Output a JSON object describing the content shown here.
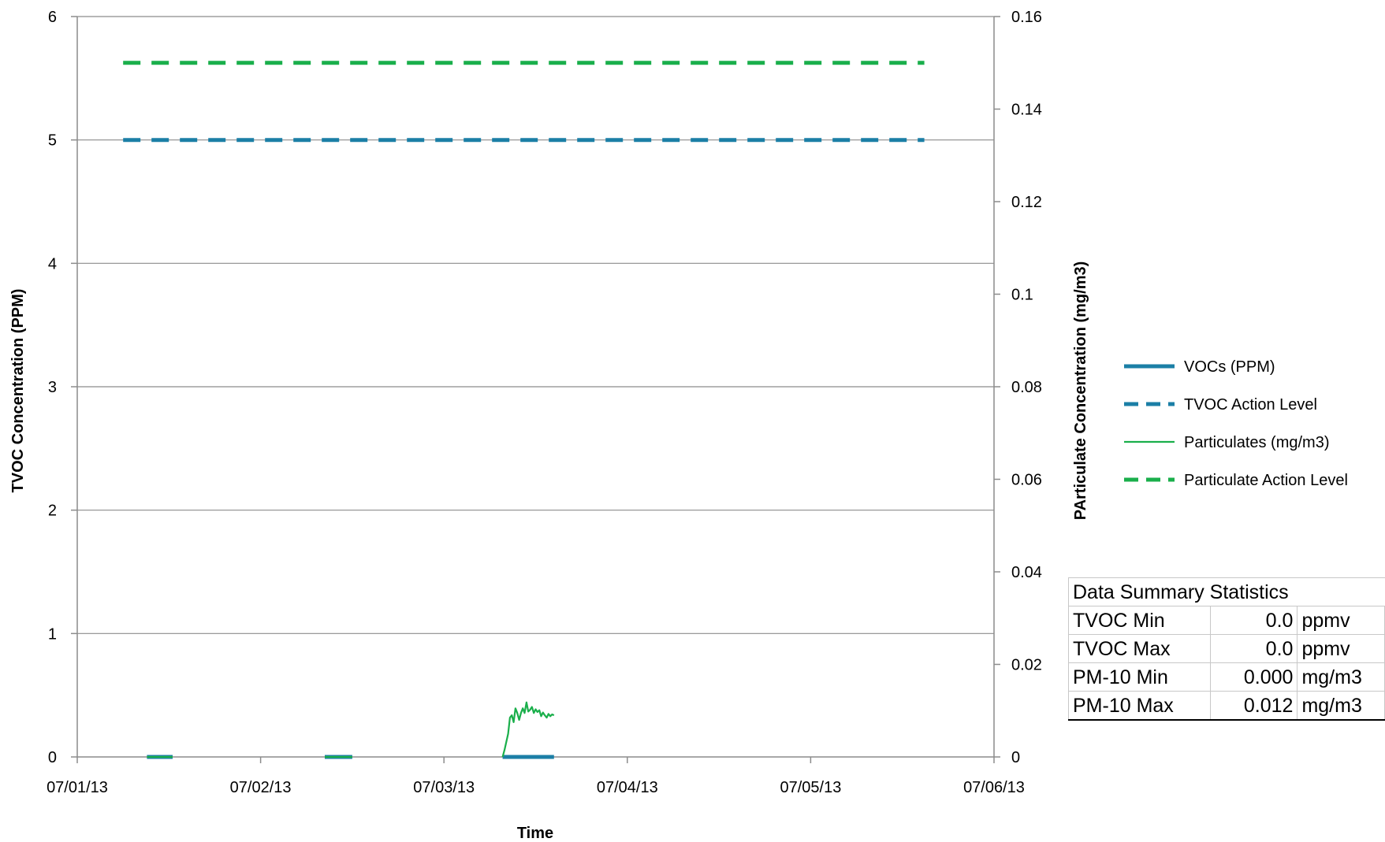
{
  "chart_data": {
    "type": "line",
    "title": "",
    "xlabel": "Time",
    "ylabel_left": "TVOC Concentration (PPM)",
    "ylabel_right": "PArticulate Concentration (mg/m3)",
    "x_ticks": [
      "07/01/13",
      "07/02/13",
      "07/03/13",
      "07/04/13",
      "07/05/13",
      "07/06/13"
    ],
    "xlim": [
      "07/01/13",
      "07/06/13"
    ],
    "y_left_ticks": [
      "0",
      "1",
      "2",
      "3",
      "4",
      "5",
      "6"
    ],
    "y_left_lim": [
      0,
      6
    ],
    "y_right_ticks": [
      "0",
      "0.02",
      "0.04",
      "0.06",
      "0.08",
      "0.1",
      "0.12",
      "0.14",
      "0.16"
    ],
    "y_right_lim": [
      0,
      0.16
    ],
    "grid": "horizontal",
    "legend_position": "right",
    "series": [
      {
        "name": "VOCs (PPM)",
        "axis": "left",
        "style": "solid-thick",
        "color": "#1B7FA6",
        "segments": [
          [
            [
              0.38,
              0
            ],
            [
              0.52,
              0
            ]
          ],
          [
            [
              1.35,
              0
            ],
            [
              1.5,
              0
            ]
          ],
          [
            [
              2.32,
              0
            ],
            [
              2.6,
              0
            ]
          ]
        ]
      },
      {
        "name": "TVOC Action Level",
        "axis": "left",
        "style": "dashed",
        "color": "#1B7FA6",
        "segments": [
          [
            [
              0.25,
              5
            ],
            [
              4.62,
              5
            ]
          ]
        ]
      },
      {
        "name": "Particulates (mg/m3)",
        "axis": "right",
        "style": "solid-thin",
        "color": "#1AAF4B",
        "segments": [
          [
            [
              0.38,
              0
            ],
            [
              0.52,
              0
            ]
          ],
          [
            [
              1.35,
              0
            ],
            [
              1.5,
              0
            ]
          ],
          [
            [
              2.32,
              0
            ],
            [
              2.33,
              0.0015
            ],
            [
              2.35,
              0.005
            ],
            [
              2.36,
              0.0085
            ],
            [
              2.37,
              0.009
            ],
            [
              2.38,
              0.0075
            ],
            [
              2.39,
              0.0105
            ],
            [
              2.4,
              0.0095
            ],
            [
              2.41,
              0.008
            ],
            [
              2.42,
              0.0095
            ],
            [
              2.43,
              0.0105
            ],
            [
              2.44,
              0.0095
            ],
            [
              2.45,
              0.0118
            ],
            [
              2.46,
              0.0098
            ],
            [
              2.47,
              0.0102
            ],
            [
              2.48,
              0.0108
            ],
            [
              2.49,
              0.0095
            ],
            [
              2.5,
              0.0103
            ],
            [
              2.51,
              0.0097
            ],
            [
              2.52,
              0.0101
            ],
            [
              2.53,
              0.0088
            ],
            [
              2.54,
              0.0096
            ],
            [
              2.55,
              0.009
            ],
            [
              2.56,
              0.0085
            ],
            [
              2.57,
              0.0093
            ],
            [
              2.58,
              0.0088
            ],
            [
              2.59,
              0.0092
            ],
            [
              2.6,
              0.009
            ]
          ]
        ]
      },
      {
        "name": "Particulate Action Level",
        "axis": "right",
        "style": "dashed",
        "color": "#1AAF4B",
        "segments": [
          [
            [
              0.25,
              0.15
            ],
            [
              4.62,
              0.15
            ]
          ]
        ]
      }
    ]
  },
  "summary_table": {
    "title": "Data Summary Statistics",
    "rows": [
      {
        "label": "TVOC Min",
        "value": "0.0",
        "unit": "ppmv"
      },
      {
        "label": "TVOC Max",
        "value": "0.0",
        "unit": "ppmv"
      },
      {
        "label": "PM-10 Min",
        "value": "0.000",
        "unit": "mg/m3"
      },
      {
        "label": "PM-10 Max",
        "value": "0.012",
        "unit": "mg/m3"
      }
    ]
  }
}
